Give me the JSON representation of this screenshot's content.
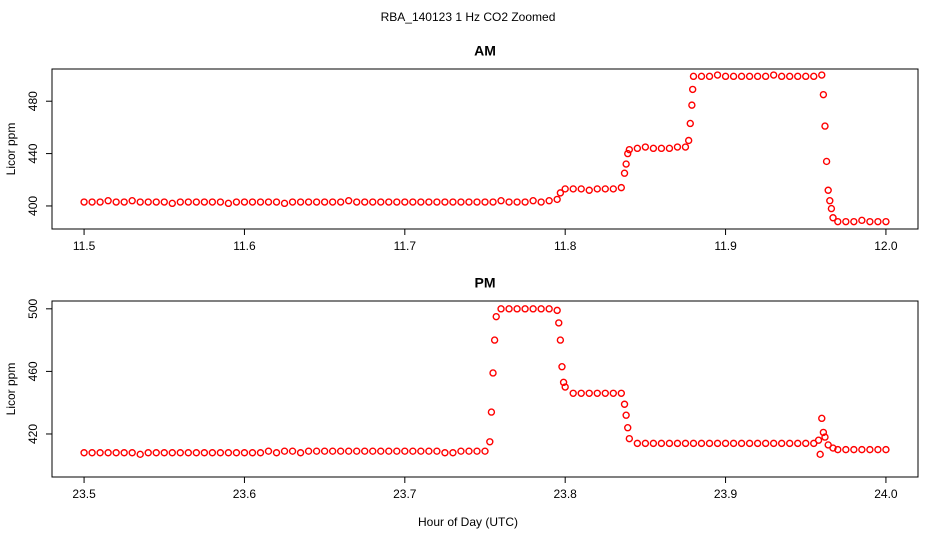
{
  "title": "RBA_140123  1 Hz CO2 Zoomed",
  "xlabel": "Hour of Day (UTC)",
  "chart_data": [
    {
      "type": "scatter",
      "title": "AM",
      "ylabel": "Licor ppm",
      "color": "#ff0000",
      "xlim": [
        11.48,
        12.02
      ],
      "ylim": [
        382.4,
        504.6
      ],
      "xticks": [
        11.5,
        11.6,
        11.7,
        11.8,
        11.9,
        {
          "value": 12,
          "label": "12.0"
        }
      ],
      "yticks": [
        400,
        440,
        480
      ],
      "x": [
        11.5,
        11.505,
        11.51,
        11.515,
        11.52,
        11.525,
        11.53,
        11.535,
        11.54,
        11.545,
        11.55,
        11.555,
        11.56,
        11.565,
        11.57,
        11.575,
        11.58,
        11.585,
        11.59,
        11.595,
        11.6,
        11.605,
        11.61,
        11.615,
        11.62,
        11.625,
        11.63,
        11.635,
        11.64,
        11.645,
        11.65,
        11.655,
        11.66,
        11.665,
        11.67,
        11.675,
        11.68,
        11.685,
        11.69,
        11.695,
        11.7,
        11.705,
        11.71,
        11.715,
        11.72,
        11.725,
        11.73,
        11.735,
        11.74,
        11.745,
        11.75,
        11.755,
        11.76,
        11.765,
        11.77,
        11.775,
        11.78,
        11.785,
        11.79,
        11.795,
        11.797,
        11.8,
        11.805,
        11.81,
        11.815,
        11.82,
        11.825,
        11.83,
        11.835,
        11.837,
        11.838,
        11.839,
        11.84,
        11.845,
        11.85,
        11.855,
        11.86,
        11.865,
        11.87,
        11.875,
        11.877,
        11.878,
        11.879,
        11.8795,
        11.88,
        11.885,
        11.89,
        11.895,
        11.9,
        11.905,
        11.91,
        11.915,
        11.92,
        11.925,
        11.93,
        11.935,
        11.94,
        11.945,
        11.95,
        11.955,
        11.96,
        11.961,
        11.962,
        11.963,
        11.964,
        11.965,
        11.966,
        11.967,
        11.97,
        11.975,
        11.98,
        11.985,
        11.99,
        11.995,
        12.0
      ],
      "values": [
        403,
        403,
        403,
        404,
        403,
        403,
        404,
        403,
        403,
        403,
        403,
        402,
        403,
        403,
        403,
        403,
        403,
        403,
        402,
        403,
        403,
        403,
        403,
        403,
        403,
        402,
        403,
        403,
        403,
        403,
        403,
        403,
        403,
        404,
        403,
        403,
        403,
        403,
        403,
        403,
        403,
        403,
        403,
        403,
        403,
        403,
        403,
        403,
        403,
        403,
        403,
        403,
        404,
        403,
        403,
        403,
        404,
        403,
        404,
        405,
        410,
        413,
        413,
        413,
        412,
        413,
        413,
        413,
        414,
        425,
        432,
        440,
        443,
        444,
        445,
        444,
        444,
        444,
        445,
        445,
        450,
        463,
        477,
        489,
        499,
        499,
        499,
        500,
        499,
        499,
        499,
        499,
        499,
        499,
        500,
        499,
        499,
        499,
        499,
        499,
        500,
        485,
        461,
        434,
        412,
        404,
        398,
        391,
        388,
        388,
        388,
        389,
        388,
        388,
        388
      ]
    },
    {
      "type": "scatter",
      "title": "PM",
      "ylabel": "Licor ppm",
      "color": "#ff0000",
      "xlim": [
        23.48,
        24.02
      ],
      "ylim": [
        392.5,
        505
      ],
      "xticks": [
        23.5,
        23.6,
        23.7,
        23.8,
        23.9,
        {
          "value": 24,
          "label": "24.0"
        }
      ],
      "yticks": [
        420,
        460,
        500
      ],
      "x": [
        23.5,
        23.505,
        23.51,
        23.515,
        23.52,
        23.525,
        23.53,
        23.535,
        23.54,
        23.545,
        23.55,
        23.555,
        23.56,
        23.565,
        23.57,
        23.575,
        23.58,
        23.585,
        23.59,
        23.595,
        23.6,
        23.605,
        23.61,
        23.615,
        23.62,
        23.625,
        23.63,
        23.635,
        23.64,
        23.645,
        23.65,
        23.655,
        23.66,
        23.665,
        23.67,
        23.675,
        23.68,
        23.685,
        23.69,
        23.695,
        23.7,
        23.705,
        23.71,
        23.715,
        23.72,
        23.725,
        23.73,
        23.735,
        23.74,
        23.745,
        23.75,
        23.753,
        23.754,
        23.755,
        23.756,
        23.757,
        23.76,
        23.765,
        23.77,
        23.775,
        23.78,
        23.785,
        23.79,
        23.795,
        23.796,
        23.797,
        23.798,
        23.799,
        23.8,
        23.805,
        23.81,
        23.815,
        23.82,
        23.825,
        23.83,
        23.835,
        23.837,
        23.838,
        23.839,
        23.84,
        23.845,
        23.85,
        23.855,
        23.86,
        23.865,
        23.87,
        23.875,
        23.88,
        23.885,
        23.89,
        23.895,
        23.9,
        23.905,
        23.91,
        23.915,
        23.92,
        23.925,
        23.93,
        23.935,
        23.94,
        23.945,
        23.95,
        23.955,
        23.958,
        23.959,
        23.96,
        23.961,
        23.962,
        23.964,
        23.967,
        23.97,
        23.975,
        23.98,
        23.985,
        23.99,
        23.995,
        24.0
      ],
      "values": [
        408,
        408,
        408,
        408,
        408,
        408,
        408,
        407,
        408,
        408,
        408,
        408,
        408,
        408,
        408,
        408,
        408,
        408,
        408,
        408,
        408,
        408,
        408,
        409,
        408,
        409,
        409,
        408,
        409,
        409,
        409,
        409,
        409,
        409,
        409,
        409,
        409,
        409,
        409,
        409,
        409,
        409,
        409,
        409,
        409,
        408,
        408,
        409,
        409,
        409,
        409,
        415,
        434,
        459,
        480,
        495,
        500,
        500,
        500,
        500,
        500,
        500,
        500,
        499,
        491,
        480,
        463,
        453,
        450,
        446,
        446,
        446,
        446,
        446,
        446,
        446,
        439,
        432,
        424,
        417,
        414,
        414,
        414,
        414,
        414,
        414,
        414,
        414,
        414,
        414,
        414,
        414,
        414,
        414,
        414,
        414,
        414,
        414,
        414,
        414,
        414,
        414,
        414,
        416,
        407,
        430,
        421,
        418,
        413,
        411,
        410,
        410,
        410,
        410,
        410,
        410,
        410
      ]
    }
  ]
}
